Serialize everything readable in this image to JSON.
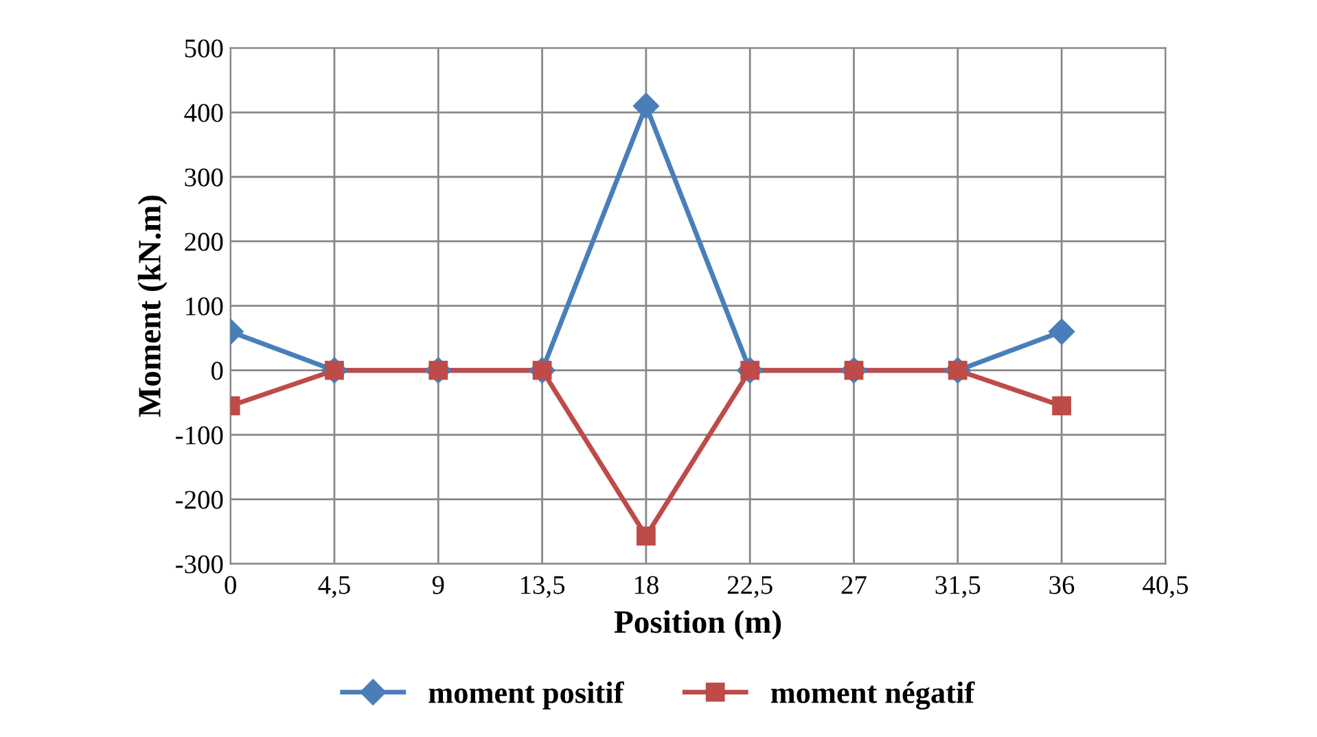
{
  "chart_data": {
    "type": "line",
    "xlabel": "Position (m)",
    "ylabel": "Moment (kN.m)",
    "x": [
      0,
      4.5,
      9,
      13.5,
      18,
      22.5,
      27,
      31.5,
      36
    ],
    "series": [
      {
        "name": "moment positif",
        "color": "#4a7ebb",
        "marker": "diamond",
        "values": [
          60,
          0,
          0,
          0,
          410,
          0,
          0,
          0,
          60
        ]
      },
      {
        "name": "moment négatif",
        "color": "#be4b48",
        "marker": "square",
        "values": [
          -55,
          0,
          0,
          0,
          -257,
          0,
          0,
          0,
          -55
        ]
      }
    ],
    "xlim": [
      0,
      40.5
    ],
    "xticks": [
      0,
      {
        "value": 4.5,
        "label": "4,5"
      },
      9,
      {
        "value": 13.5,
        "label": "13,5"
      },
      18,
      {
        "value": 22.5,
        "label": "22,5"
      },
      27,
      {
        "value": 31.5,
        "label": "31,5"
      },
      36,
      {
        "value": 40.5,
        "label": "40,5"
      }
    ],
    "ylim": [
      -300,
      500
    ],
    "yticks": [
      -300,
      -200,
      -100,
      0,
      100,
      200,
      300,
      400,
      500
    ],
    "grid": true,
    "legend": "bottom",
    "line_style": "solid"
  }
}
